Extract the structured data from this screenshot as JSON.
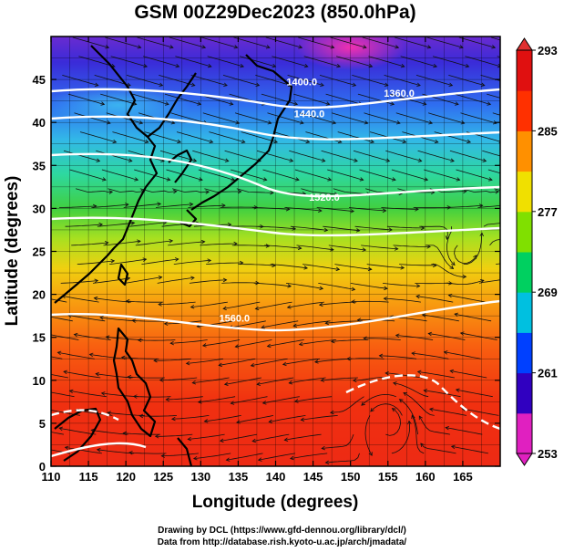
{
  "title": "GSM 00Z29Dec2023 (850.0hPa)",
  "x_axis": {
    "label": "Longitude (degrees)",
    "range": [
      110,
      170
    ],
    "ticks": [
      "110",
      "115",
      "120",
      "125",
      "130",
      "135",
      "140",
      "145",
      "150",
      "155",
      "160",
      "165"
    ]
  },
  "y_axis": {
    "label": "Latitude (degrees)",
    "range": [
      0,
      50
    ],
    "ticks": [
      "0",
      "5",
      "10",
      "15",
      "20",
      "25",
      "30",
      "35",
      "40",
      "45"
    ]
  },
  "colorbar": {
    "range": [
      253,
      293
    ],
    "ticks": [
      "253",
      "261",
      "269",
      "277",
      "285",
      "293"
    ],
    "colors": [
      "#e020c0",
      "#3000c0",
      "#0040ff",
      "#00c0e0",
      "#00d060",
      "#80e000",
      "#f0e000",
      "#ff9000",
      "#ff3000",
      "#e01010"
    ]
  },
  "contour_labels": [
    {
      "text": "1360.0",
      "lon": 156.5,
      "lat": 43.0
    },
    {
      "text": "1400.0",
      "lon": 143.5,
      "lat": 44.3
    },
    {
      "text": "1440.0",
      "lon": 144.5,
      "lat": 40.6
    },
    {
      "text": "1520.0",
      "lon": 146.5,
      "lat": 30.9
    },
    {
      "text": "1560.0",
      "lon": 134.5,
      "lat": 16.8
    }
  ],
  "credits": {
    "line1": "Drawing by DCL (https://www.gfd-dennou.org/library/dcl/)",
    "line2": "Data from http://database.rish.kyoto-u.ac.jp/arch/jmadata/"
  }
}
